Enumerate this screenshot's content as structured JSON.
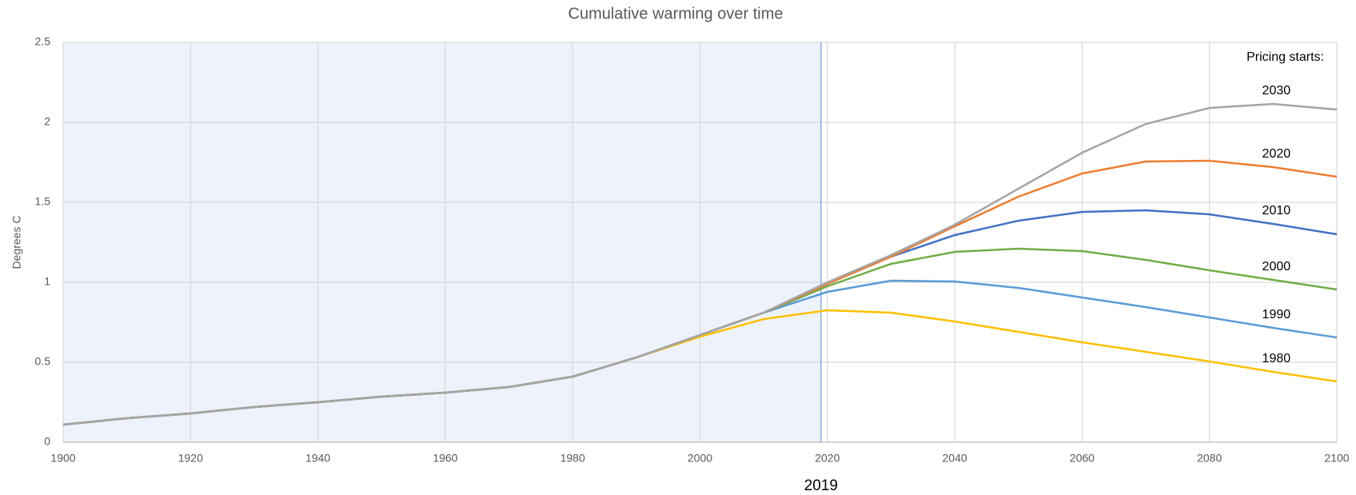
{
  "chart_data": {
    "type": "line",
    "title": "Cumulative warming over time",
    "y_label": "Degrees C",
    "annotation": "Pricing starts:",
    "marker_x": 2019,
    "x": [
      1900,
      1910,
      1920,
      1930,
      1940,
      1950,
      1960,
      1970,
      1980,
      1990,
      2000,
      2010,
      2020,
      2030,
      2040,
      2050,
      2060,
      2070,
      2080,
      2090,
      2100
    ],
    "series": [
      {
        "name": "1980",
        "color": "#ffc000",
        "values": [
          0.11,
          0.15,
          0.18,
          0.22,
          0.25,
          0.285,
          0.31,
          0.345,
          0.41,
          0.53,
          0.66,
          0.77,
          0.825,
          0.81,
          0.755,
          0.69,
          0.625,
          0.565,
          0.505,
          0.44,
          0.38
        ]
      },
      {
        "name": "1990",
        "color": "#5b9bd5",
        "values": [
          0.11,
          0.15,
          0.18,
          0.22,
          0.25,
          0.285,
          0.31,
          0.345,
          0.41,
          0.53,
          0.67,
          0.81,
          0.94,
          1.01,
          1.005,
          0.965,
          0.905,
          0.845,
          0.78,
          0.715,
          0.655
        ]
      },
      {
        "name": "2000",
        "color": "#70ad47",
        "values": [
          0.11,
          0.15,
          0.18,
          0.22,
          0.25,
          0.285,
          0.31,
          0.345,
          0.41,
          0.53,
          0.67,
          0.81,
          0.975,
          1.115,
          1.19,
          1.21,
          1.195,
          1.14,
          1.075,
          1.015,
          0.955
        ]
      },
      {
        "name": "2010",
        "color": "#4472c4",
        "values": [
          0.11,
          0.15,
          0.18,
          0.22,
          0.25,
          0.285,
          0.31,
          0.345,
          0.41,
          0.53,
          0.67,
          0.81,
          0.99,
          1.16,
          1.295,
          1.385,
          1.44,
          1.45,
          1.425,
          1.365,
          1.3
        ]
      },
      {
        "name": "2020",
        "color": "#ed7d31",
        "values": [
          0.11,
          0.15,
          0.18,
          0.22,
          0.25,
          0.285,
          0.31,
          0.345,
          0.41,
          0.53,
          0.67,
          0.81,
          0.99,
          1.16,
          1.35,
          1.535,
          1.68,
          1.755,
          1.76,
          1.72,
          1.66
        ]
      },
      {
        "name": "2030",
        "color": "#a5a5a5",
        "values": [
          0.11,
          0.15,
          0.18,
          0.22,
          0.25,
          0.285,
          0.31,
          0.345,
          0.41,
          0.53,
          0.67,
          0.81,
          1.0,
          1.17,
          1.36,
          1.585,
          1.81,
          1.99,
          2.09,
          2.115,
          2.08
        ]
      }
    ],
    "xlim": [
      1900,
      2100
    ],
    "xticks": [
      1900,
      1920,
      1940,
      1960,
      1980,
      2000,
      2020,
      2040,
      2060,
      2080,
      2100
    ],
    "ylim": [
      0,
      2.5
    ],
    "yticks": [
      0,
      0.5,
      1,
      1.5,
      2,
      2.5
    ],
    "grid": true
  }
}
